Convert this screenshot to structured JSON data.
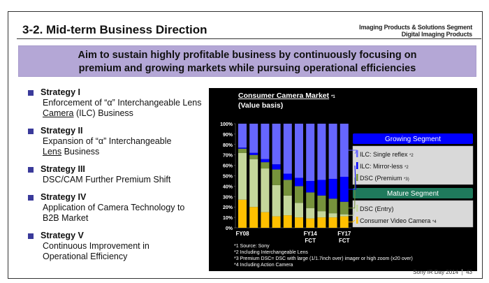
{
  "header": {
    "title": "3-2. Mid-term Business Direction",
    "segment_line1": "Imaging Products & Solutions Segment",
    "segment_line2": "Digital Imaging Products"
  },
  "banner": {
    "line1": "Aim to sustain highly profitable business by continuously focusing on",
    "line2": "premium and growing markets while pursuing operational efficiencies"
  },
  "strategies": [
    {
      "title": "Strategy I",
      "line1": "Enforcement of “α” Interchangeable Lens",
      "line2_u": "Camera",
      "line2_rest": " (ILC) Business"
    },
    {
      "title": "Strategy II",
      "line1": "Expansion of “α” Interchangeable",
      "line2_u": "Lens",
      "line2_rest": " Business"
    },
    {
      "title": "Strategy III",
      "line1": "DSC/CAM Further Premium Shift",
      "line2_u": "",
      "line2_rest": ""
    },
    {
      "title": "Strategy IV",
      "line1": "Application of Camera Technology to",
      "line2_u": "",
      "line2_rest": "B2B Market"
    },
    {
      "title": "Strategy V",
      "line1": "Continuous Improvement in",
      "line2_u": "",
      "line2_rest": "Operational Efficiency"
    }
  ],
  "chart_data": {
    "type": "bar",
    "stacked": true,
    "title": "Consumer Camera Market",
    "title_note": "*1",
    "subtitle": "(Value basis)",
    "categories": [
      "FY08",
      "",
      "",
      "",
      "",
      "",
      "FY14 FCT",
      "",
      "",
      "FY17 FCT"
    ],
    "x_tick_labels": [
      {
        "index": 0,
        "line1": "FY08",
        "line2": ""
      },
      {
        "index": 6,
        "line1": "FY14",
        "line2": "FCT"
      },
      {
        "index": 9,
        "line1": "FY17",
        "line2": "FCT"
      }
    ],
    "ylim": [
      0,
      100
    ],
    "yticks": [
      "0%",
      "10%",
      "20%",
      "30%",
      "40%",
      "50%",
      "60%",
      "70%",
      "80%",
      "90%",
      "100%"
    ],
    "series": [
      {
        "name": "Consumer Video Camera",
        "note": "*4",
        "color": "#ffc000",
        "values": [
          27,
          20,
          15,
          11,
          12,
          10,
          9,
          10,
          10,
          11
        ]
      },
      {
        "name": "DSC (Entry)",
        "note": "",
        "color": "#c4d79b",
        "values": [
          45,
          46,
          42,
          30,
          19,
          14,
          10,
          6,
          4,
          2
        ]
      },
      {
        "name": "DSC (Premium",
        "note": "*3)",
        "color": "#77933c",
        "values": [
          4,
          4,
          6,
          15,
          15,
          16,
          15,
          15,
          14,
          12
        ]
      },
      {
        "name": "ILC: Mirror-less",
        "note": "*2",
        "color": "#0000ff",
        "values": [
          1,
          2,
          3,
          5,
          6,
          8,
          11,
          15,
          19,
          24
        ]
      },
      {
        "name": "ILC: Single reflex",
        "note": "*2",
        "color": "#6666ff",
        "values": [
          23,
          28,
          34,
          39,
          48,
          52,
          55,
          54,
          53,
          51
        ]
      }
    ],
    "legend_groups": [
      {
        "label": "Growing Segment",
        "color": "#0000ff",
        "items": [
          "ILC: Single reflex",
          "ILC: Mirror-less",
          "DSC (Premium"
        ]
      },
      {
        "label": "Mature Segment",
        "color": "#1f7a5c",
        "items": [
          "DSC (Entry)",
          "Consumer Video Camera"
        ]
      }
    ],
    "legend_placement": "right"
  },
  "footnotes": [
    "*1  Source: Sony",
    "*2  Including Interchangeable Lens",
    "*3  Premium DSC= DSC with large (1/1.7inch over) imager or high zoom (x20 over)",
    "*4  Including Action Camera"
  ],
  "footer": {
    "event": "Sony IR Day 2014",
    "page": "43"
  }
}
